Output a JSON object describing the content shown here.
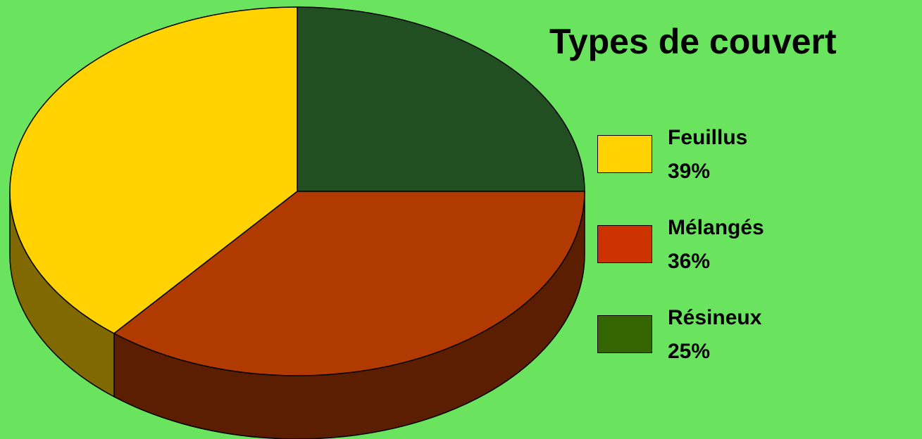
{
  "chart_data": {
    "type": "pie",
    "title": "Types de couvert",
    "slices": [
      {
        "label": "Feuillus",
        "value": 39,
        "value_label": "39%",
        "color": "#ffd200",
        "side_color": "#7f6900"
      },
      {
        "label": "Mélangés",
        "value": 36,
        "value_label": "36%",
        "color": "#b03a00",
        "legend_color": "#cc3300",
        "side_color": "#5c1e00"
      },
      {
        "label": "Résineux",
        "value": 25,
        "value_label": "25%",
        "color": "#214f22",
        "legend_color": "#336600",
        "side_color": "#122e12"
      }
    ],
    "style": "3d",
    "legend_position": "right"
  },
  "colors": {
    "background": "#6ae45e"
  }
}
